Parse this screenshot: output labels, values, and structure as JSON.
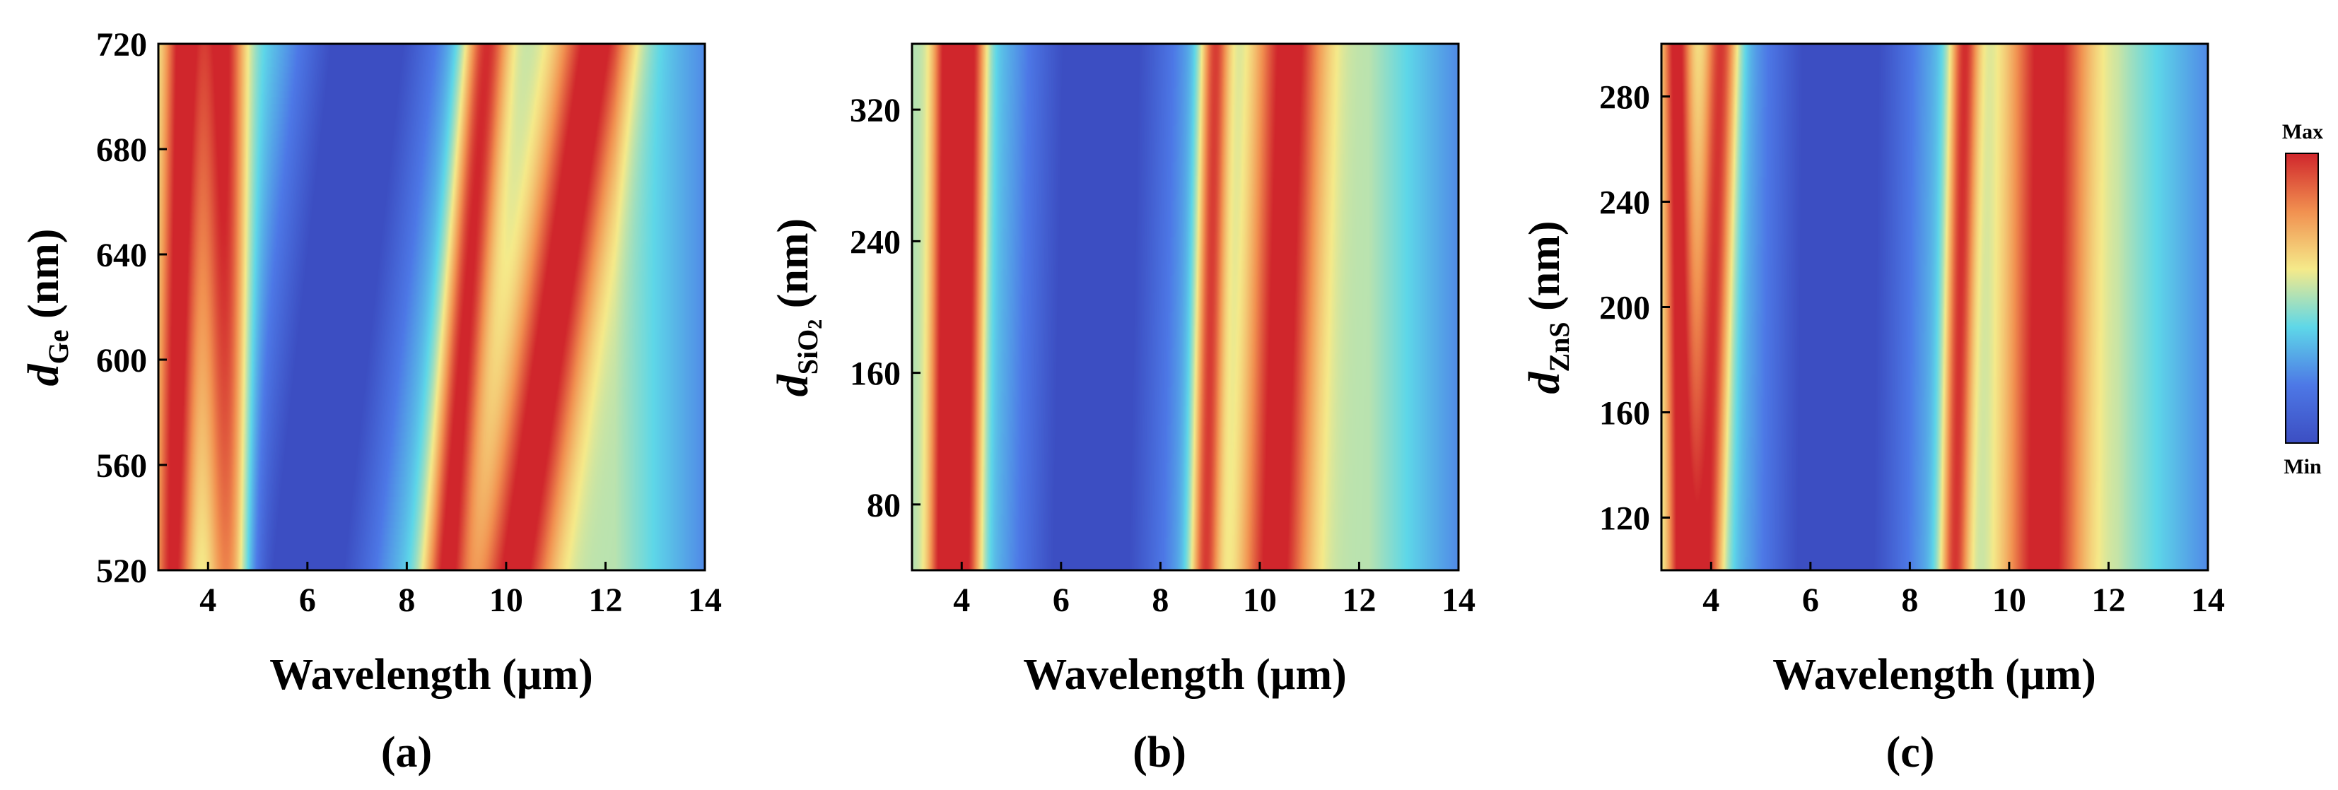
{
  "chart_data": [
    {
      "type": "heatmap",
      "panel_label": "(a)",
      "xlabel": "Wavelength (µm)",
      "ylabel_var": "d",
      "ylabel_sub": "Ge",
      "ylabel_unit": " (nm)",
      "xlim": [
        3,
        14
      ],
      "ylim": [
        520,
        720
      ],
      "xticks": [
        4,
        6,
        8,
        10,
        12,
        14
      ],
      "yticks": [
        520,
        560,
        600,
        640,
        680,
        720
      ],
      "ridges": [
        {
          "kind": "max",
          "x_at_ymin": 4.4,
          "x_at_ymax": 4.3,
          "width": 0.45
        },
        {
          "kind": "max",
          "x_at_ymin": 3.3,
          "x_at_ymax": 3.5,
          "width": 0.4
        },
        {
          "kind": "min",
          "x_at_ymin": 6.0,
          "x_at_ymax": 7.2,
          "width": 1.7
        },
        {
          "kind": "max",
          "x_at_ymin": 8.8,
          "x_at_ymax": 9.6,
          "width": 0.45
        },
        {
          "kind": "max",
          "x_at_ymin": 10.2,
          "x_at_ymax": 11.8,
          "width": 0.75
        }
      ]
    },
    {
      "type": "heatmap",
      "panel_label": "(b)",
      "xlabel": "Wavelength (µm)",
      "ylabel_var": "d",
      "ylabel_sub": "SiO2",
      "ylabel_unit": " (nm)",
      "xlim": [
        3,
        14
      ],
      "ylim": [
        40,
        360
      ],
      "xticks": [
        4,
        6,
        8,
        10,
        12,
        14
      ],
      "yticks": [
        80,
        160,
        240,
        320
      ],
      "ridges": [
        {
          "kind": "max",
          "x_at_ymin": 3.6,
          "x_at_ymax": 3.7,
          "width": 0.3
        },
        {
          "kind": "max",
          "x_at_ymin": 4.1,
          "x_at_ymax": 4.2,
          "width": 0.3
        },
        {
          "kind": "min",
          "x_at_ymin": 6.6,
          "x_at_ymax": 6.8,
          "width": 1.8
        },
        {
          "kind": "max",
          "x_at_ymin": 8.9,
          "x_at_ymax": 9.1,
          "width": 0.3
        },
        {
          "kind": "max",
          "x_at_ymin": 10.3,
          "x_at_ymax": 10.6,
          "width": 0.7
        }
      ]
    },
    {
      "type": "heatmap",
      "panel_label": "(c)",
      "xlabel": "Wavelength (µm)",
      "ylabel_var": "d",
      "ylabel_sub": "ZnS",
      "ylabel_unit": " (nm)",
      "xlim": [
        3,
        14
      ],
      "ylim": [
        100,
        300
      ],
      "xticks": [
        4,
        6,
        8,
        10,
        12,
        14
      ],
      "yticks": [
        120,
        160,
        200,
        240,
        280
      ],
      "ridges": [
        {
          "kind": "max",
          "x_at_ymin": 3.4,
          "x_at_ymax": 3.3,
          "width": 0.3
        },
        {
          "kind": "max",
          "x_at_ymin": 3.9,
          "x_at_ymax": 4.2,
          "width": 0.35
        },
        {
          "kind": "min",
          "x_at_ymin": 6.5,
          "x_at_ymax": 6.6,
          "width": 1.8
        },
        {
          "kind": "max",
          "x_at_ymin": 8.9,
          "x_at_ymax": 9.1,
          "width": 0.3
        },
        {
          "kind": "max",
          "x_at_ymin": 10.7,
          "x_at_ymax": 10.8,
          "width": 0.8
        }
      ]
    }
  ],
  "colorbar": {
    "max_label": "Max",
    "min_label": "Min",
    "colormap": "jet",
    "stops": [
      "#3c4ec2",
      "#4d78e6",
      "#5ed7e8",
      "#f5ea8a",
      "#f19050",
      "#d0262c"
    ]
  }
}
